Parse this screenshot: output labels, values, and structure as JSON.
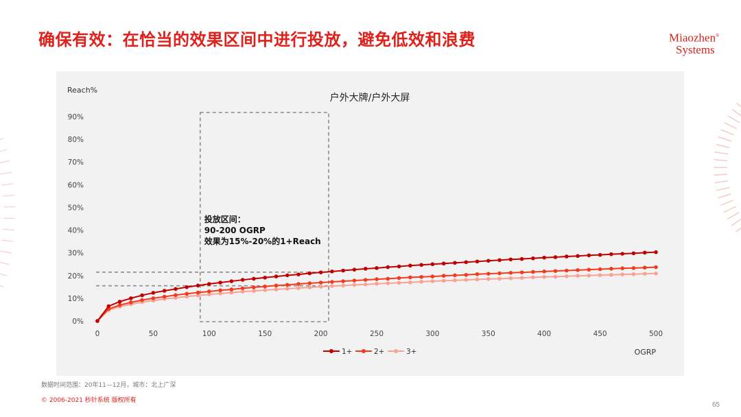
{
  "slide": {
    "title": "确保有效：在恰当的效果区间中进行投放，避免低效和浪费",
    "logo_line1": "Miaozhen",
    "logo_reg": "®",
    "logo_line2": "Systems",
    "note": "数据时间范围：20年11—12月，城市：北上广深",
    "copyright": "© 2006-2021 秒针系统 版权所有",
    "page": "65",
    "brand_color": "#e0201b"
  },
  "chart_data": {
    "type": "line",
    "title": "户外大牌/户外大屏",
    "ylabel": "Reach%",
    "xlabel": "OGRP",
    "xlim": [
      0,
      500
    ],
    "ylim": [
      0,
      90
    ],
    "yticks": [
      "0%",
      "10%",
      "20%",
      "30%",
      "40%",
      "50%",
      "60%",
      "70%",
      "80%",
      "90%"
    ],
    "xticks": [
      "0",
      "50",
      "100",
      "150",
      "200",
      "250",
      "300",
      "350",
      "400",
      "450",
      "500"
    ],
    "legend_position": "bottom-right",
    "x": [
      0,
      10,
      20,
      30,
      40,
      50,
      60,
      70,
      80,
      90,
      100,
      110,
      120,
      130,
      140,
      150,
      160,
      170,
      180,
      190,
      200,
      210,
      220,
      230,
      240,
      250,
      260,
      270,
      280,
      290,
      300,
      310,
      320,
      330,
      340,
      350,
      360,
      370,
      380,
      390,
      400,
      410,
      420,
      430,
      440,
      450,
      460,
      470,
      480,
      490,
      500
    ],
    "series": [
      {
        "name": "1+",
        "color": "#c00000",
        "values": [
          0,
          6.5,
          8.5,
          10,
          11.3,
          12.4,
          13.3,
          14.1,
          14.9,
          15.6,
          16.3,
          16.9,
          17.5,
          18.1,
          18.6,
          19.1,
          19.6,
          20.1,
          20.5,
          21,
          21.4,
          21.8,
          22.2,
          22.6,
          23,
          23.3,
          23.7,
          24,
          24.4,
          24.7,
          25,
          25.3,
          25.6,
          25.9,
          26.2,
          26.5,
          26.8,
          27.1,
          27.3,
          27.6,
          27.9,
          28.1,
          28.4,
          28.6,
          28.9,
          29.1,
          29.4,
          29.6,
          29.8,
          30.1,
          30.3
        ]
      },
      {
        "name": "2+",
        "color": "#f23a1d",
        "values": [
          0,
          5.3,
          7,
          8.2,
          9.2,
          10,
          10.7,
          11.4,
          12,
          12.5,
          13,
          13.5,
          13.9,
          14.4,
          14.8,
          15.2,
          15.6,
          15.9,
          16.3,
          16.6,
          16.9,
          17.2,
          17.5,
          17.8,
          18.1,
          18.4,
          18.6,
          18.9,
          19.2,
          19.4,
          19.6,
          19.9,
          20.1,
          20.3,
          20.6,
          20.8,
          21,
          21.2,
          21.4,
          21.6,
          21.8,
          22,
          22.2,
          22.4,
          22.6,
          22.8,
          23,
          23.2,
          23.3,
          23.5,
          23.7
        ]
      },
      {
        "name": "3+",
        "color": "#f7a394",
        "values": [
          0,
          4.8,
          6.3,
          7.4,
          8.3,
          9,
          9.7,
          10.2,
          10.8,
          11.2,
          11.7,
          12.1,
          12.5,
          12.9,
          13.2,
          13.6,
          13.9,
          14.2,
          14.5,
          14.8,
          15.1,
          15.4,
          15.6,
          15.9,
          16.1,
          16.4,
          16.6,
          16.8,
          17,
          17.3,
          17.5,
          17.7,
          17.9,
          18.1,
          18.3,
          18.5,
          18.6,
          18.8,
          19,
          19.2,
          19.4,
          19.5,
          19.7,
          19.9,
          20,
          20.2,
          20.3,
          20.5,
          20.6,
          20.8,
          20.9
        ]
      }
    ],
    "annotation": {
      "lines": [
        "投放区间：",
        "90-200 OGRP",
        "效果为15%-20%的1+Reach"
      ],
      "x_range": [
        92,
        207
      ],
      "reference_y": [
        21.5,
        15.5
      ]
    }
  }
}
